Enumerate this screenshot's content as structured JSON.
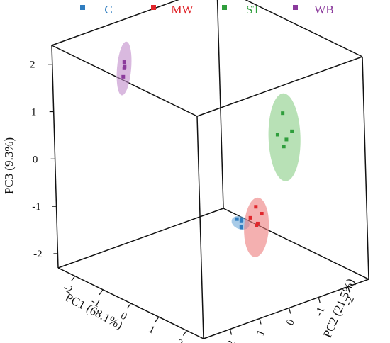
{
  "chart_data": {
    "type": "scatter",
    "projection": "3d-box",
    "title": "",
    "axes": {
      "x": {
        "label": "PC1 (68.1%)",
        "ticks": [
          "-2",
          "-1",
          "0",
          "1",
          "2"
        ],
        "range": [
          -2.6,
          2.6
        ]
      },
      "y": {
        "label": "PC2 (21.5%)",
        "ticks": [
          "2",
          "1",
          "0",
          "-1",
          "-2"
        ],
        "range": [
          2.9,
          -2.7
        ]
      },
      "z": {
        "label": "PC3 (9.3%)",
        "ticks": [
          "-2",
          "-1",
          "0",
          "1",
          "2"
        ],
        "range": [
          -2.3,
          2.4
        ]
      }
    },
    "legend": {
      "placement": "top"
    },
    "series": [
      {
        "name": "C",
        "color": "#2f7dc0",
        "ellipse_color": "#6ea8d8",
        "points": [
          {
            "x": 1.5,
            "y": 0.5,
            "z": -0.66
          },
          {
            "x": 1.6,
            "y": 0.6,
            "z": -0.74
          },
          {
            "x": 1.4,
            "y": 0.4,
            "z": -0.7
          },
          {
            "x": 1.55,
            "y": 0.55,
            "z": -0.78
          },
          {
            "x": 1.45,
            "y": 0.6,
            "z": -0.62
          }
        ]
      },
      {
        "name": "MW",
        "color": "#e0262b",
        "ellipse_color": "#ec7c7c",
        "points": [
          {
            "x": 1.5,
            "y": 0.0,
            "z": -0.48
          },
          {
            "x": 1.6,
            "y": -0.1,
            "z": -0.62
          },
          {
            "x": 1.4,
            "y": 0.1,
            "z": -0.72
          },
          {
            "x": 1.55,
            "y": 0.0,
            "z": -0.82
          },
          {
            "x": 1.45,
            "y": -0.05,
            "z": -0.9
          }
        ]
      },
      {
        "name": "ST",
        "color": "#2f9e3c",
        "ellipse_color": "#88cd86",
        "points": [
          {
            "x": 0.3,
            "y": -2.1,
            "z": 0.68
          },
          {
            "x": 0.4,
            "y": -2.3,
            "z": 0.28
          },
          {
            "x": 0.2,
            "y": -2.0,
            "z": 0.22
          },
          {
            "x": 0.3,
            "y": -2.2,
            "z": 0.1
          },
          {
            "x": 0.25,
            "y": -2.15,
            "z": -0.05
          }
        ]
      },
      {
        "name": "WB",
        "color": "#8b3a9c",
        "ellipse_color": "#bf8bca",
        "points": [
          {
            "x": -1.5,
            "y": 1.5,
            "z": 2.05
          },
          {
            "x": -1.4,
            "y": 1.6,
            "z": 1.97
          },
          {
            "x": -1.6,
            "y": 1.4,
            "z": 1.9
          },
          {
            "x": -1.5,
            "y": 1.55,
            "z": 1.75
          }
        ]
      }
    ]
  }
}
